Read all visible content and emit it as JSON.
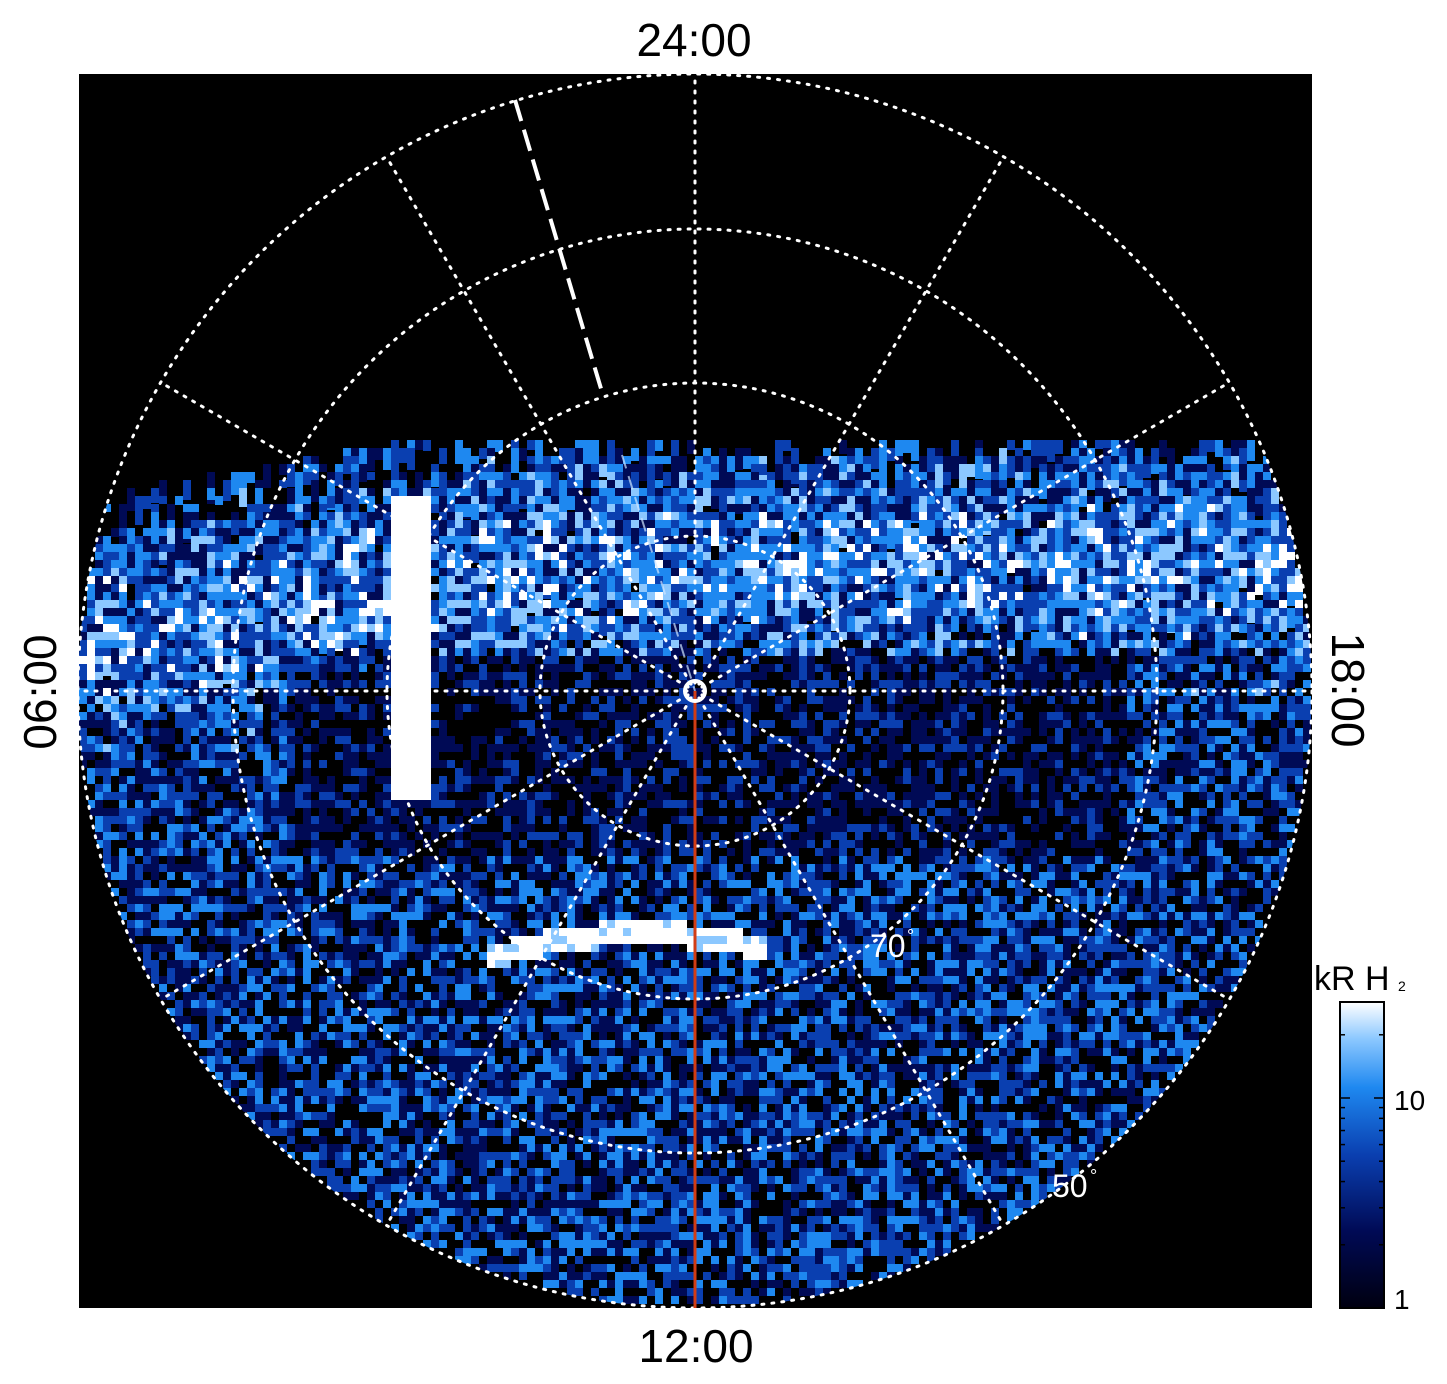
{
  "local_time_labels": {
    "top": "24:00",
    "bottom": "12:00",
    "left": "06:00",
    "right": "18:00"
  },
  "latitude_labels": {
    "inner": "70",
    "outer": "50",
    "degree_symbol": "°"
  },
  "colorbar": {
    "title": "kR H",
    "title_subscript": "2",
    "ticks": [
      "10",
      "1"
    ],
    "colors": [
      "#000010",
      "#000a55",
      "#0a3fb0",
      "#1e88f0",
      "#8cc8ff",
      "#ffffff"
    ]
  },
  "colors": {
    "background": "#000000",
    "grid": "#ffffff",
    "meridian_line": "#d23c14"
  }
}
